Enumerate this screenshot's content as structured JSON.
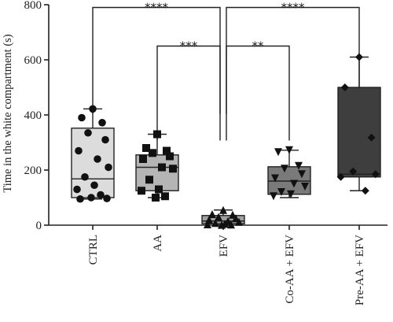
{
  "chart_data": {
    "type": "box",
    "ylabel": "Time in the white compartment (s)",
    "ylim": [
      0,
      800
    ],
    "yticks": [
      0,
      200,
      400,
      600,
      800
    ],
    "categories": [
      "CTRL",
      "AA",
      "EFV",
      "Co-AA + EFV",
      "Pre-AA + EFV"
    ],
    "groups": [
      {
        "name": "CTRL",
        "fill": "#dcdcdc",
        "marker": "circle",
        "box": {
          "min": 95,
          "q1": 100,
          "median": 168,
          "q3": 352,
          "max": 422
        },
        "points": [
          422,
          390,
          372,
          335,
          310,
          270,
          240,
          210,
          175,
          145,
          130,
          110,
          100,
          97,
          95
        ]
      },
      {
        "name": "AA",
        "fill": "#b5b5b5",
        "marker": "square",
        "box": {
          "min": 100,
          "q1": 125,
          "median": 210,
          "q3": 255,
          "max": 330
        },
        "points": [
          330,
          280,
          270,
          262,
          250,
          240,
          210,
          205,
          165,
          130,
          125,
          105,
          100
        ]
      },
      {
        "name": "EFV",
        "fill": "#a0a0a0",
        "marker": "triangle-up",
        "box": {
          "min": 0,
          "q1": 5,
          "median": 15,
          "q3": 35,
          "max": 55
        },
        "points": [
          55,
          40,
          38,
          30,
          25,
          20,
          15,
          12,
          8,
          5,
          3,
          2,
          1
        ]
      },
      {
        "name": "Co-AA + EFV",
        "fill": "#7a7a7a",
        "marker": "triangle-down",
        "box": {
          "min": 100,
          "q1": 112,
          "median": 160,
          "q3": 212,
          "max": 272
        },
        "points": [
          272,
          265,
          215,
          205,
          185,
          170,
          150,
          140,
          120,
          112,
          105
        ]
      },
      {
        "name": "Pre-AA + EFV",
        "fill": "#3e3e3e",
        "marker": "diamond",
        "box": {
          "min": 125,
          "q1": 175,
          "median": 185,
          "q3": 500,
          "max": 610
        },
        "points": [
          610,
          500,
          318,
          195,
          185,
          175,
          125
        ]
      }
    ],
    "comparisons": [
      {
        "from": "CTRL",
        "to": "EFV",
        "label": "****",
        "level": 790
      },
      {
        "from": "AA",
        "to": "EFV",
        "label": "***",
        "level": 650
      },
      {
        "from": "EFV",
        "to": "Co-AA + EFV",
        "label": "**",
        "level": 650
      },
      {
        "from": "EFV",
        "to": "Pre-AA + EFV",
        "label": "****",
        "level": 790
      }
    ]
  }
}
